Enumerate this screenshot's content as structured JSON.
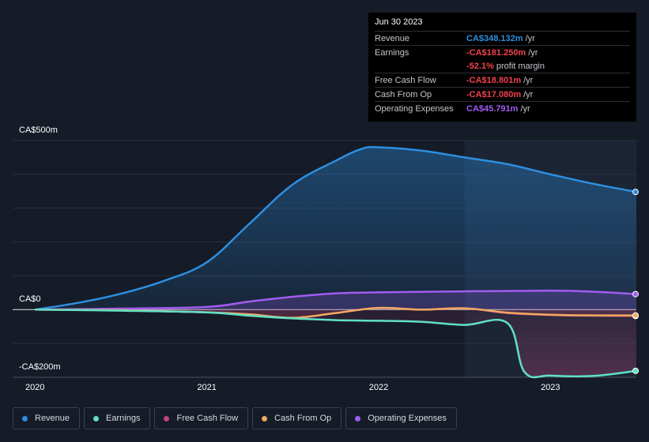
{
  "tooltip": {
    "date": "Jun 30 2023",
    "rows": [
      {
        "label": "Revenue",
        "value": "CA$348.132m",
        "unit": "/yr",
        "color": "#2d8fe0"
      },
      {
        "label": "Earnings",
        "value": "-CA$181.250m",
        "unit": "/yr",
        "color": "#f0424d"
      },
      {
        "label": "",
        "value": "-52.1%",
        "unit": "profit margin",
        "color": "#f0424d"
      },
      {
        "label": "Free Cash Flow",
        "value": "-CA$18.801m",
        "unit": "/yr",
        "color": "#f0424d"
      },
      {
        "label": "Cash From Op",
        "value": "-CA$17.080m",
        "unit": "/yr",
        "color": "#f0424d"
      },
      {
        "label": "Operating Expenses",
        "value": "CA$45.791m",
        "unit": "/yr",
        "color": "#a15cf0"
      }
    ]
  },
  "chart_data": {
    "type": "line",
    "y_ticks": [
      {
        "label": "CA$500m",
        "value": 500
      },
      {
        "label": "CA$0",
        "value": 0
      },
      {
        "label": "-CA$200m",
        "value": -200
      }
    ],
    "x_ticks": [
      {
        "label": "2020",
        "value": 2020.0
      },
      {
        "label": "2021",
        "value": 2021.0
      },
      {
        "label": "2022",
        "value": 2022.0
      },
      {
        "label": "2023",
        "value": 2023.0
      }
    ],
    "xlim": [
      2019.87,
      2023.5
    ],
    "ylim": [
      -200,
      500
    ],
    "highlight_start": 2022.5,
    "series": [
      {
        "name": "Revenue",
        "color": "#2d8fe0",
        "fill": true,
        "x": [
          2020.0,
          2020.25,
          2020.5,
          2020.75,
          2021.0,
          2021.25,
          2021.5,
          2021.75,
          2021.9,
          2022.0,
          2022.25,
          2022.5,
          2022.75,
          2023.0,
          2023.25,
          2023.5
        ],
        "y": [
          0,
          20,
          47,
          85,
          140,
          255,
          370,
          440,
          475,
          480,
          470,
          450,
          430,
          400,
          372,
          348
        ]
      },
      {
        "name": "Operating Expenses",
        "color": "#a15cf0",
        "fill": true,
        "x": [
          2020.0,
          2020.5,
          2021.0,
          2021.25,
          2021.5,
          2021.75,
          2022.0,
          2022.5,
          2023.0,
          2023.25,
          2023.5
        ],
        "y": [
          0,
          3,
          8,
          24,
          38,
          48,
          51,
          54,
          56,
          53,
          46
        ]
      },
      {
        "name": "Free Cash Flow",
        "color": "#c1457c",
        "fill": true,
        "x": [
          2020.0,
          2020.5,
          2021.0,
          2021.25,
          2021.5,
          2021.75,
          2022.0,
          2022.25,
          2022.5,
          2022.75,
          2023.0,
          2023.25,
          2023.5
        ],
        "y": [
          0,
          -2,
          -8,
          -14,
          -25,
          -10,
          5,
          0,
          4,
          -10,
          -16,
          -18,
          -19
        ]
      },
      {
        "name": "Cash From Op",
        "color": "#f0a961",
        "fill": false,
        "x": [
          2020.0,
          2020.5,
          2021.0,
          2021.25,
          2021.5,
          2021.75,
          2022.0,
          2022.25,
          2022.5,
          2022.75,
          2023.0,
          2023.25,
          2023.5
        ],
        "y": [
          0,
          -2,
          -8,
          -14,
          -24,
          -10,
          5,
          0,
          4,
          -9,
          -15,
          -17,
          -17
        ]
      },
      {
        "name": "Earnings",
        "color": "#60e0c6",
        "fill": true,
        "x": [
          2020.0,
          2020.5,
          2021.0,
          2021.25,
          2021.5,
          2021.75,
          2022.0,
          2022.25,
          2022.5,
          2022.75,
          2022.85,
          2023.0,
          2023.25,
          2023.5
        ],
        "y": [
          0,
          -3,
          -8,
          -18,
          -26,
          -31,
          -33,
          -36,
          -45,
          -40,
          -185,
          -195,
          -196,
          -181
        ]
      }
    ]
  },
  "legend": [
    {
      "label": "Revenue",
      "color": "#2d8fe0"
    },
    {
      "label": "Earnings",
      "color": "#60e0c6"
    },
    {
      "label": "Free Cash Flow",
      "color": "#c1457c"
    },
    {
      "label": "Cash From Op",
      "color": "#f0a961"
    },
    {
      "label": "Operating Expenses",
      "color": "#a15cf0"
    }
  ]
}
